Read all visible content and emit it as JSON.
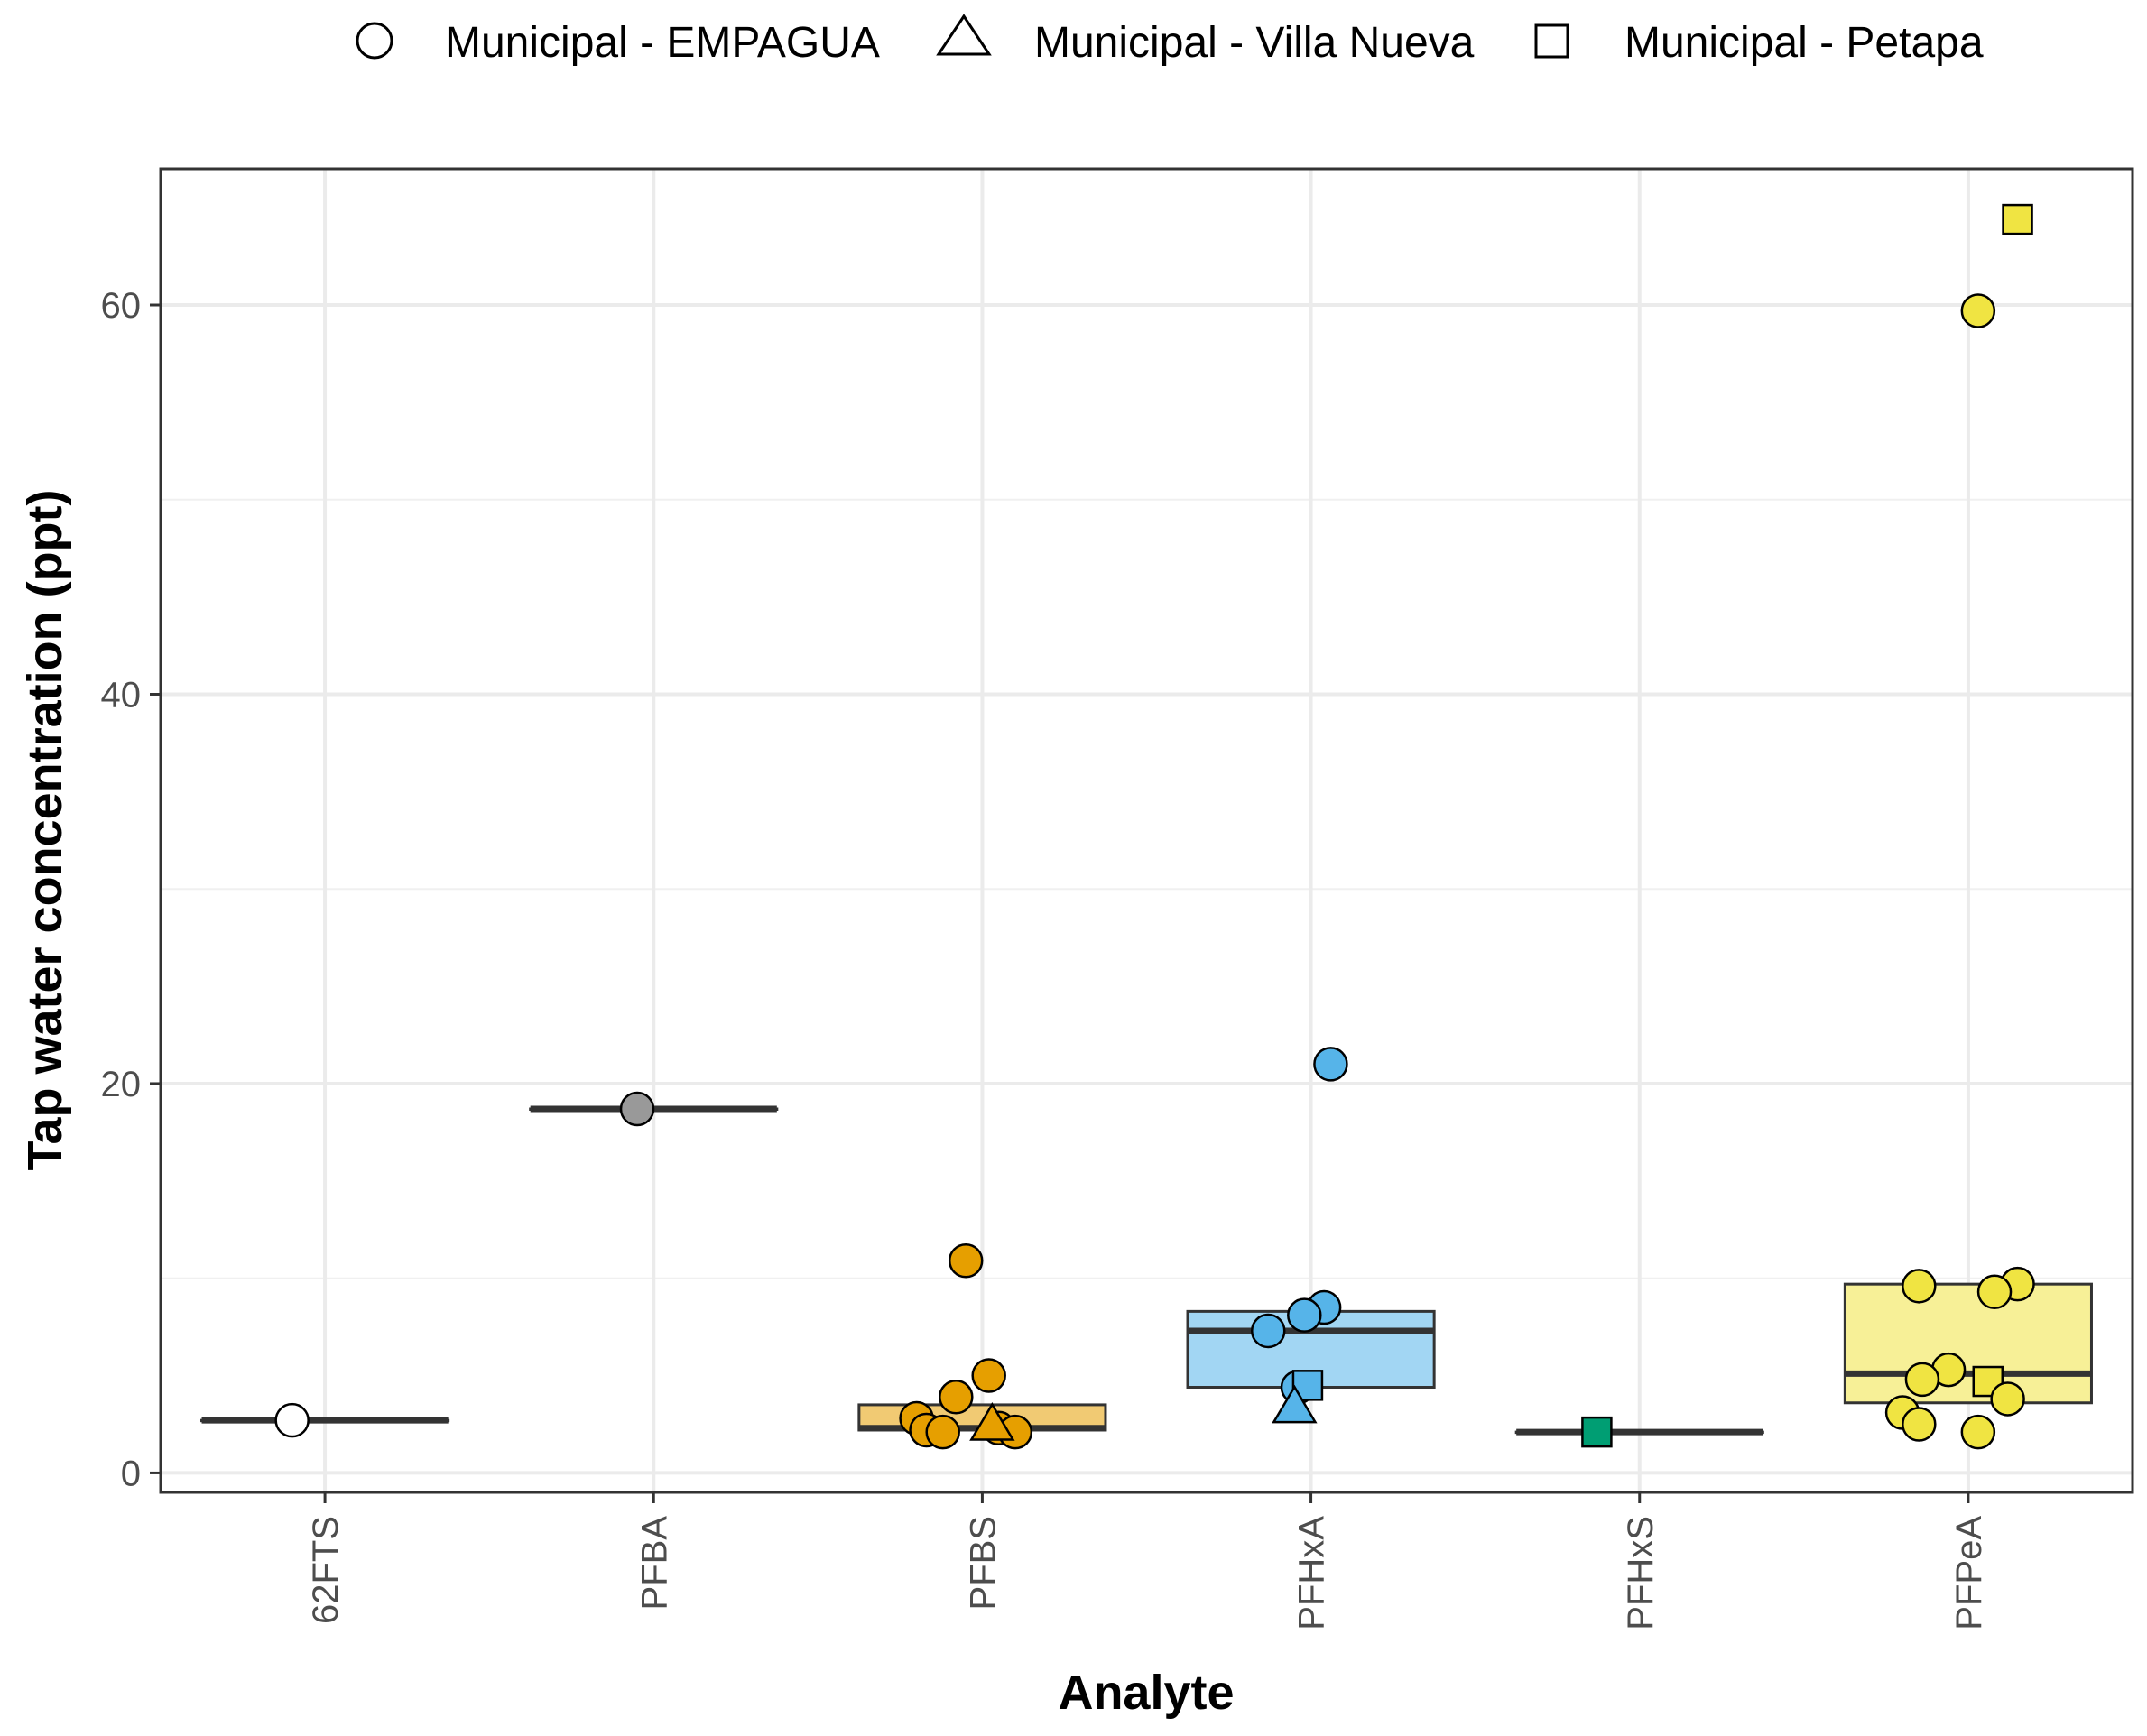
{
  "chart_data": {
    "type": "boxplot",
    "title": "",
    "xlabel": "Analyte",
    "ylabel": "Tap water concentration (ppt)",
    "ylim": [
      -1,
      67
    ],
    "yticks": [
      0,
      20,
      40,
      60
    ],
    "grid": true,
    "legend_position": "top",
    "legend": [
      {
        "label": "Municipal - EMPAGUA",
        "shape": "circle"
      },
      {
        "label": "Municipal - Villa Nueva",
        "shape": "triangle"
      },
      {
        "label": "Municipal - Petapa",
        "shape": "square"
      }
    ],
    "categories": [
      "62FTS",
      "PFBA",
      "PFBS",
      "PFHxA",
      "PFHxS",
      "PFPeA"
    ],
    "series": [
      {
        "name": "62FTS",
        "color": "#ffffff",
        "box": {
          "q1": 2.7,
          "median": 2.7,
          "q3": 2.7
        },
        "points": [
          {
            "y": 2.7,
            "shape": "circle",
            "jitter": -0.1
          }
        ]
      },
      {
        "name": "PFBA",
        "color": "#999999",
        "box": {
          "q1": 18.7,
          "median": 18.7,
          "q3": 18.7
        },
        "points": [
          {
            "y": 18.7,
            "shape": "circle",
            "jitter": -0.05
          }
        ]
      },
      {
        "name": "PFBS",
        "color": "#E69F00",
        "box": {
          "q1": 2.2,
          "median": 2.3,
          "q3": 3.5
        },
        "points": [
          {
            "y": 10.9,
            "shape": "circle",
            "jitter": -0.05
          },
          {
            "y": 5.0,
            "shape": "circle",
            "jitter": 0.02
          },
          {
            "y": 3.9,
            "shape": "circle",
            "jitter": -0.08
          },
          {
            "y": 2.8,
            "shape": "circle",
            "jitter": -0.2
          },
          {
            "y": 2.2,
            "shape": "circle",
            "jitter": -0.17
          },
          {
            "y": 2.1,
            "shape": "circle",
            "jitter": -0.12
          },
          {
            "y": 2.3,
            "shape": "circle",
            "jitter": 0.05
          },
          {
            "y": 2.1,
            "shape": "circle",
            "jitter": 0.1
          },
          {
            "y": 2.5,
            "shape": "triangle",
            "jitter": 0.03
          }
        ]
      },
      {
        "name": "PFHxA",
        "color": "#56B4E9",
        "box": {
          "q1": 4.4,
          "median": 7.3,
          "q3": 8.3
        },
        "points": [
          {
            "y": 21.0,
            "shape": "circle",
            "jitter": 0.06
          },
          {
            "y": 8.5,
            "shape": "circle",
            "jitter": 0.04
          },
          {
            "y": 8.1,
            "shape": "circle",
            "jitter": -0.02
          },
          {
            "y": 7.3,
            "shape": "circle",
            "jitter": -0.13
          },
          {
            "y": 4.4,
            "shape": "circle",
            "jitter": -0.04
          },
          {
            "y": 4.5,
            "shape": "square",
            "jitter": -0.01
          },
          {
            "y": 3.4,
            "shape": "triangle",
            "jitter": -0.05
          }
        ]
      },
      {
        "name": "PFHxS",
        "color": "#009E73",
        "box": {
          "q1": 2.1,
          "median": 2.1,
          "q3": 2.1
        },
        "points": [
          {
            "y": 2.1,
            "shape": "square",
            "jitter": -0.13
          }
        ]
      },
      {
        "name": "PFPeA",
        "color": "#F0E442",
        "box": {
          "q1": 3.6,
          "median": 5.1,
          "q3": 9.7
        },
        "points": [
          {
            "y": 64.4,
            "shape": "square",
            "jitter": 0.15
          },
          {
            "y": 59.7,
            "shape": "circle",
            "jitter": 0.03
          },
          {
            "y": 9.7,
            "shape": "circle",
            "jitter": 0.15
          },
          {
            "y": 9.6,
            "shape": "circle",
            "jitter": -0.15
          },
          {
            "y": 9.3,
            "shape": "circle",
            "jitter": 0.08
          },
          {
            "y": 5.3,
            "shape": "circle",
            "jitter": -0.06
          },
          {
            "y": 4.8,
            "shape": "circle",
            "jitter": -0.14
          },
          {
            "y": 4.7,
            "shape": "square",
            "jitter": 0.06
          },
          {
            "y": 3.8,
            "shape": "circle",
            "jitter": 0.12
          },
          {
            "y": 3.1,
            "shape": "circle",
            "jitter": -0.2
          },
          {
            "y": 2.5,
            "shape": "circle",
            "jitter": -0.15
          },
          {
            "y": 2.1,
            "shape": "circle",
            "jitter": 0.03
          }
        ]
      }
    ]
  }
}
